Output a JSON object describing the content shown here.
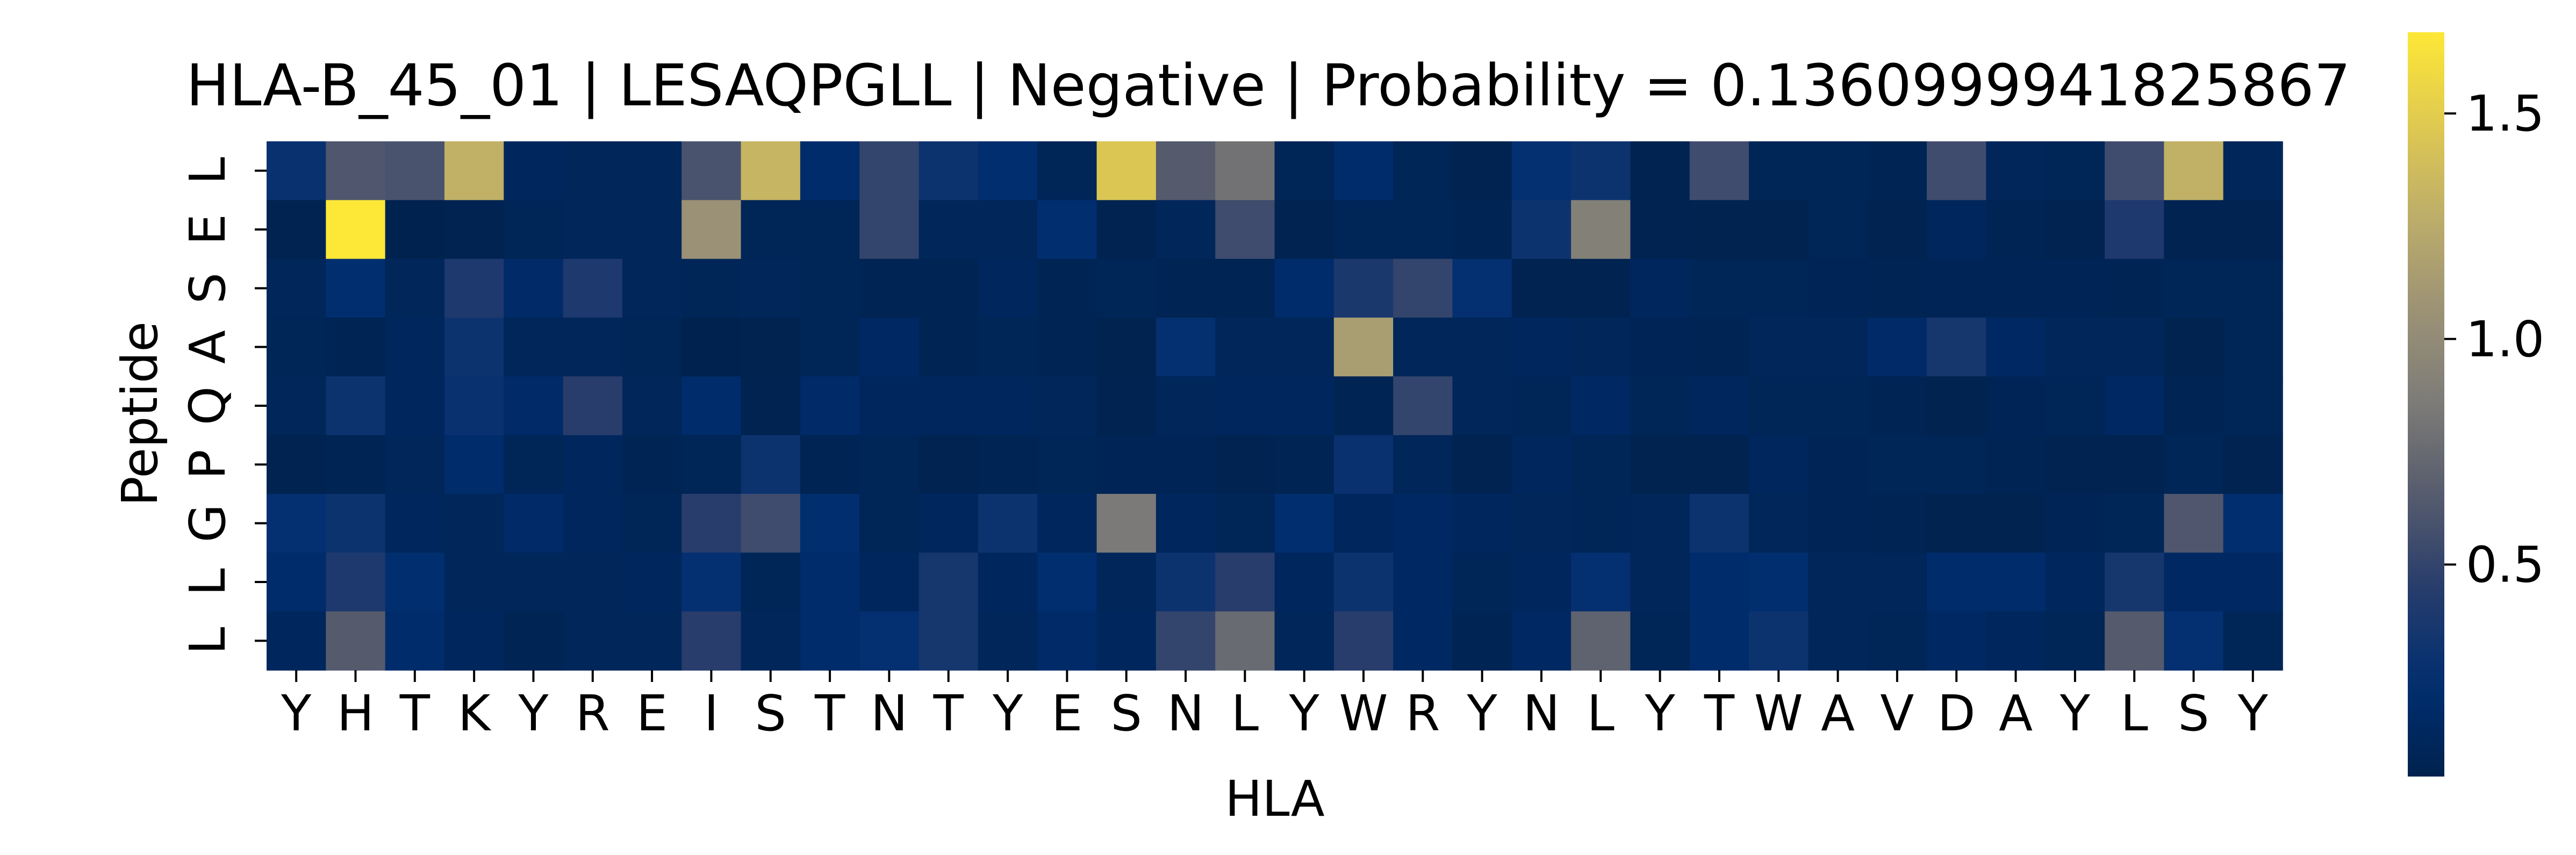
{
  "chart_data": {
    "type": "heatmap",
    "title": "HLA-B_45_01 | LESAQPGLL | Negative | Probability = 0.1360999941825867",
    "xlabel": "HLA",
    "ylabel": "Peptide",
    "x_categories": [
      "Y",
      "H",
      "T",
      "K",
      "Y",
      "R",
      "E",
      "I",
      "S",
      "T",
      "N",
      "T",
      "Y",
      "E",
      "S",
      "N",
      "L",
      "Y",
      "W",
      "R",
      "Y",
      "N",
      "L",
      "Y",
      "T",
      "W",
      "A",
      "V",
      "D",
      "A",
      "Y",
      "L",
      "S",
      "Y"
    ],
    "y_categories": [
      "L",
      "E",
      "S",
      "A",
      "Q",
      "P",
      "G",
      "L",
      "L"
    ],
    "colormap": "cividis",
    "colorbar": {
      "min": 0.03,
      "max": 1.68,
      "ticks": [
        0.5,
        1.0,
        1.5
      ],
      "tick_labels": [
        "0.5",
        "1.0",
        "1.5"
      ]
    },
    "values": [
      [
        0.28,
        0.62,
        0.6,
        1.3,
        0.12,
        0.1,
        0.1,
        0.6,
        1.33,
        0.2,
        0.5,
        0.3,
        0.22,
        0.08,
        1.45,
        0.65,
        0.8,
        0.08,
        0.2,
        0.08,
        0.05,
        0.25,
        0.3,
        0.05,
        0.55,
        0.08,
        0.08,
        0.06,
        0.55,
        0.1,
        0.08,
        0.55,
        1.3,
        0.1
      ],
      [
        0.05,
        1.68,
        0.03,
        0.05,
        0.08,
        0.1,
        0.1,
        1.05,
        0.08,
        0.08,
        0.5,
        0.1,
        0.1,
        0.22,
        0.05,
        0.1,
        0.55,
        0.05,
        0.08,
        0.08,
        0.06,
        0.3,
        0.9,
        0.05,
        0.04,
        0.04,
        0.08,
        0.05,
        0.12,
        0.06,
        0.05,
        0.4,
        0.05,
        0.05
      ],
      [
        0.1,
        0.22,
        0.1,
        0.4,
        0.18,
        0.4,
        0.1,
        0.08,
        0.1,
        0.08,
        0.06,
        0.06,
        0.12,
        0.06,
        0.08,
        0.06,
        0.06,
        0.2,
        0.38,
        0.5,
        0.25,
        0.05,
        0.05,
        0.12,
        0.08,
        0.08,
        0.07,
        0.06,
        0.07,
        0.07,
        0.07,
        0.06,
        0.08,
        0.08
      ],
      [
        0.08,
        0.06,
        0.12,
        0.3,
        0.1,
        0.1,
        0.08,
        0.03,
        0.04,
        0.08,
        0.15,
        0.06,
        0.08,
        0.06,
        0.04,
        0.25,
        0.1,
        0.1,
        1.15,
        0.1,
        0.1,
        0.12,
        0.1,
        0.07,
        0.06,
        0.1,
        0.1,
        0.18,
        0.35,
        0.15,
        0.1,
        0.1,
        0.04,
        0.08
      ],
      [
        0.1,
        0.3,
        0.12,
        0.28,
        0.18,
        0.45,
        0.1,
        0.2,
        0.05,
        0.18,
        0.12,
        0.12,
        0.12,
        0.1,
        0.05,
        0.1,
        0.12,
        0.12,
        0.06,
        0.5,
        0.1,
        0.08,
        0.15,
        0.08,
        0.12,
        0.08,
        0.08,
        0.06,
        0.04,
        0.07,
        0.08,
        0.15,
        0.06,
        0.08
      ],
      [
        0.05,
        0.06,
        0.1,
        0.2,
        0.08,
        0.12,
        0.06,
        0.08,
        0.3,
        0.06,
        0.08,
        0.05,
        0.06,
        0.08,
        0.07,
        0.07,
        0.05,
        0.06,
        0.28,
        0.1,
        0.05,
        0.12,
        0.08,
        0.04,
        0.04,
        0.12,
        0.07,
        0.08,
        0.08,
        0.06,
        0.05,
        0.05,
        0.08,
        0.05
      ],
      [
        0.25,
        0.3,
        0.12,
        0.1,
        0.18,
        0.12,
        0.08,
        0.45,
        0.55,
        0.22,
        0.08,
        0.12,
        0.3,
        0.12,
        0.85,
        0.12,
        0.08,
        0.22,
        0.12,
        0.15,
        0.12,
        0.1,
        0.08,
        0.1,
        0.3,
        0.1,
        0.07,
        0.06,
        0.04,
        0.04,
        0.07,
        0.08,
        0.62,
        0.22
      ],
      [
        0.2,
        0.4,
        0.22,
        0.1,
        0.1,
        0.1,
        0.12,
        0.25,
        0.08,
        0.2,
        0.12,
        0.35,
        0.12,
        0.22,
        0.1,
        0.3,
        0.45,
        0.12,
        0.3,
        0.15,
        0.08,
        0.12,
        0.25,
        0.1,
        0.2,
        0.22,
        0.1,
        0.1,
        0.2,
        0.2,
        0.12,
        0.35,
        0.15,
        0.15
      ],
      [
        0.12,
        0.65,
        0.2,
        0.12,
        0.06,
        0.1,
        0.1,
        0.45,
        0.1,
        0.2,
        0.25,
        0.35,
        0.1,
        0.18,
        0.12,
        0.5,
        0.75,
        0.1,
        0.45,
        0.15,
        0.06,
        0.15,
        0.7,
        0.08,
        0.2,
        0.3,
        0.1,
        0.08,
        0.15,
        0.12,
        0.08,
        0.65,
        0.25,
        0.08
      ]
    ]
  }
}
